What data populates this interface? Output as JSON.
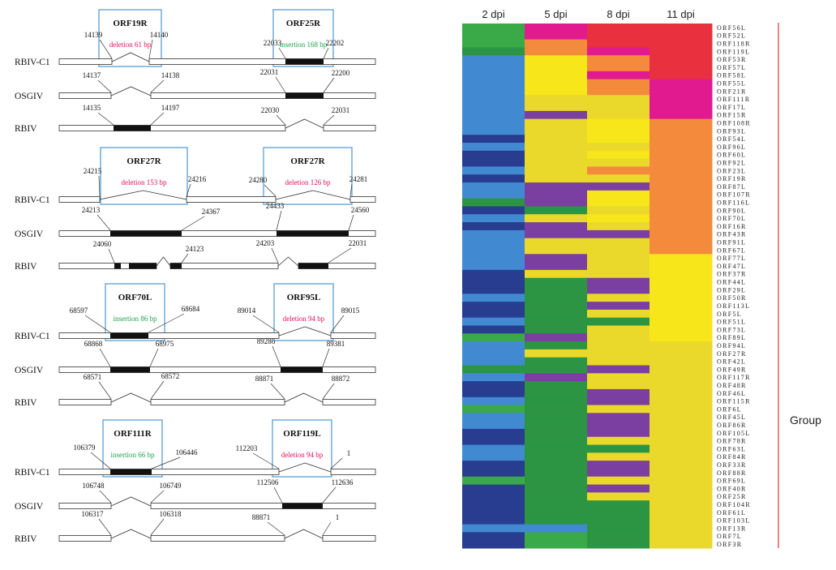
{
  "colors": {
    "red": "#e8303f",
    "pink": "#e21a8f",
    "orange": "#f48a3c",
    "yellow": "#f7e619",
    "gold": "#ead92a",
    "purple": "#7a3fa1",
    "green": "#2c9543",
    "lightgreen": "#3aaa48",
    "blue": "#418ad1",
    "navy": "#283c90",
    "insertion": "#1da34a",
    "deletion": "#e0105a",
    "box": "#5a9fd2",
    "redline": "#e63333"
  },
  "diagram": {
    "panels": [
      {
        "boxes": [
          {
            "title": "ORF19R",
            "label": "deletion 61 bp",
            "kind": "deletion"
          },
          {
            "title": "ORF25R",
            "label": "insertion 168 bp",
            "kind": "insertion"
          }
        ],
        "rows": [
          {
            "name": "RBIV-C1",
            "left": [
              "14139",
              "14140"
            ],
            "right": [
              "22033",
              "22202"
            ]
          },
          {
            "name": "OSGIV",
            "left": [
              "14137",
              "14138"
            ],
            "right": [
              "22031",
              "22200"
            ]
          },
          {
            "name": "RBIV",
            "left": [
              "14135",
              "14197"
            ],
            "right": [
              "22030",
              "22031"
            ]
          }
        ]
      },
      {
        "boxes": [
          {
            "title": "ORF27R",
            "label": "deletion 153 bp",
            "kind": "deletion"
          },
          {
            "title": "ORF27R",
            "label": "deletion 126 bp",
            "kind": "deletion"
          }
        ],
        "rows": [
          {
            "name": "RBIV-C1",
            "left": [
              "24215",
              "24216"
            ],
            "right": [
              "24280",
              "24281"
            ]
          },
          {
            "name": "OSGIV",
            "left": [
              "24213",
              "24367"
            ],
            "right": [
              "24433",
              "24560"
            ]
          },
          {
            "name": "RBIV",
            "left": [
              "24060",
              "24123"
            ],
            "right": [
              "24203",
              "22031"
            ]
          }
        ]
      },
      {
        "boxes": [
          {
            "title": "ORF70L",
            "label": "insertion 86 bp",
            "kind": "insertion"
          },
          {
            "title": "ORF95L",
            "label": "deletion 94 bp",
            "kind": "deletion"
          }
        ],
        "rows": [
          {
            "name": "RBIV-C1",
            "left": [
              "68597",
              "68684"
            ],
            "right": [
              "89014",
              "89015"
            ]
          },
          {
            "name": "OSGIV",
            "left": [
              "68868",
              "68975"
            ],
            "right": [
              "89286",
              "89381"
            ]
          },
          {
            "name": "RBIV",
            "left": [
              "68571",
              "68572"
            ],
            "right": [
              "88871",
              "88872"
            ]
          }
        ]
      },
      {
        "boxes": [
          {
            "title": "ORF111R",
            "label": "insertion 66 bp",
            "kind": "insertion"
          },
          {
            "title": "ORF119L",
            "label": "deletion 94 bp",
            "kind": "deletion"
          }
        ],
        "rows": [
          {
            "name": "RBIV-C1",
            "left": [
              "106379",
              "106446"
            ],
            "right": [
              "112203",
              "1"
            ]
          },
          {
            "name": "OSGIV",
            "left": [
              "106748",
              "106749"
            ],
            "right": [
              "112506",
              "112636"
            ]
          },
          {
            "name": "RBIV",
            "left": [
              "106317",
              "106318"
            ],
            "right": [
              "88871",
              "1"
            ]
          }
        ]
      }
    ]
  },
  "heatmap": {
    "columns": [
      "2 dpi",
      "5 dpi",
      "8 dpi",
      "11 dpi"
    ],
    "group_label": "Group",
    "genes": [
      "ORF56L",
      "ORF52L",
      "ORF118R",
      "ORF119L",
      "ORF53R",
      "ORF57L",
      "ORF58L",
      "ORF55L",
      "ORF21R",
      "ORF111R",
      "ORF17L",
      "ORF15R",
      "ORF108R",
      "ORF93L",
      "ORF54L",
      "ORF96L",
      "ORF60L",
      "ORF92L",
      "ORF23L",
      "ORF19R",
      "ORF87L",
      "ORF107R",
      "ORF116L",
      "ORF90L",
      "ORF70L",
      "ORF16R",
      "ORF43R",
      "ORF91L",
      "ORF67L",
      "ORF77L",
      "ORF47L",
      "ORF37R",
      "ORF44L",
      "ORF29L",
      "ORF50R",
      "ORF113L",
      "ORF5L",
      "ORF51L",
      "ORF73L",
      "ORF89L",
      "ORF94L",
      "ORF27R",
      "ORF42L",
      "ORF49R",
      "ORF117R",
      "ORF48R",
      "ORF46L",
      "ORF115R",
      "ORF6L",
      "ORF45L",
      "ORF86R",
      "ORF105L",
      "ORF78R",
      "ORF63L",
      "ORF84R",
      "ORF33R",
      "ORF88R",
      "ORF69L",
      "ORF40R",
      "ORF25R",
      "ORF104R",
      "ORF61L",
      "ORF103L",
      "ORF13R",
      "ORF7L",
      "ORF3R"
    ],
    "cells": [
      [
        "lightgreen",
        "pink",
        "red",
        "red"
      ],
      [
        "lightgreen",
        "pink",
        "red",
        "red"
      ],
      [
        "lightgreen",
        "orange",
        "red",
        "red"
      ],
      [
        "green",
        "orange",
        "pink",
        "red"
      ],
      [
        "blue",
        "yellow",
        "orange",
        "red"
      ],
      [
        "blue",
        "yellow",
        "orange",
        "red"
      ],
      [
        "blue",
        "yellow",
        "pink",
        "red"
      ],
      [
        "blue",
        "yellow",
        "orange",
        "pink"
      ],
      [
        "blue",
        "yellow",
        "orange",
        "pink"
      ],
      [
        "blue",
        "gold",
        "gold",
        "pink"
      ],
      [
        "blue",
        "gold",
        "gold",
        "pink"
      ],
      [
        "blue",
        "purple",
        "gold",
        "pink"
      ],
      [
        "blue",
        "gold",
        "yellow",
        "orange"
      ],
      [
        "blue",
        "gold",
        "yellow",
        "orange"
      ],
      [
        "navy",
        "gold",
        "yellow",
        "orange"
      ],
      [
        "blue",
        "gold",
        "gold",
        "orange"
      ],
      [
        "navy",
        "gold",
        "yellow",
        "orange"
      ],
      [
        "navy",
        "gold",
        "gold",
        "orange"
      ],
      [
        "blue",
        "gold",
        "orange",
        "orange"
      ],
      [
        "navy",
        "gold",
        "gold",
        "orange"
      ],
      [
        "blue",
        "purple",
        "purple",
        "orange"
      ],
      [
        "blue",
        "purple",
        "yellow",
        "orange"
      ],
      [
        "green",
        "purple",
        "yellow",
        "orange"
      ],
      [
        "navy",
        "green",
        "gold",
        "orange"
      ],
      [
        "blue",
        "gold",
        "yellow",
        "orange"
      ],
      [
        "navy",
        "purple",
        "gold",
        "orange"
      ],
      [
        "blue",
        "purple",
        "purple",
        "orange"
      ],
      [
        "blue",
        "gold",
        "gold",
        "orange"
      ],
      [
        "blue",
        "gold",
        "gold",
        "orange"
      ],
      [
        "blue",
        "purple",
        "gold",
        "yellow"
      ],
      [
        "blue",
        "purple",
        "gold",
        "yellow"
      ],
      [
        "navy",
        "gold",
        "gold",
        "yellow"
      ],
      [
        "navy",
        "green",
        "purple",
        "yellow"
      ],
      [
        "navy",
        "green",
        "purple",
        "yellow"
      ],
      [
        "blue",
        "green",
        "gold",
        "yellow"
      ],
      [
        "navy",
        "green",
        "purple",
        "yellow"
      ],
      [
        "navy",
        "green",
        "gold",
        "yellow"
      ],
      [
        "blue",
        "green",
        "green",
        "yellow"
      ],
      [
        "navy",
        "green",
        "gold",
        "yellow"
      ],
      [
        "lightgreen",
        "purple",
        "gold",
        "yellow"
      ],
      [
        "blue",
        "green",
        "gold",
        "gold"
      ],
      [
        "blue",
        "gold",
        "gold",
        "gold"
      ],
      [
        "blue",
        "green",
        "gold",
        "gold"
      ],
      [
        "green",
        "green",
        "purple",
        "gold"
      ],
      [
        "blue",
        "purple",
        "gold",
        "gold"
      ],
      [
        "navy",
        "green",
        "gold",
        "gold"
      ],
      [
        "navy",
        "green",
        "purple",
        "gold"
      ],
      [
        "blue",
        "green",
        "purple",
        "gold"
      ],
      [
        "lightgreen",
        "green",
        "gold",
        "gold"
      ],
      [
        "blue",
        "green",
        "purple",
        "gold"
      ],
      [
        "blue",
        "green",
        "purple",
        "gold"
      ],
      [
        "navy",
        "green",
        "purple",
        "gold"
      ],
      [
        "navy",
        "green",
        "gold",
        "gold"
      ],
      [
        "blue",
        "green",
        "green",
        "gold"
      ],
      [
        "blue",
        "green",
        "gold",
        "gold"
      ],
      [
        "navy",
        "green",
        "purple",
        "gold"
      ],
      [
        "navy",
        "green",
        "purple",
        "gold"
      ],
      [
        "lightgreen",
        "green",
        "gold",
        "gold"
      ],
      [
        "navy",
        "green",
        "purple",
        "gold"
      ],
      [
        "navy",
        "green",
        "gold",
        "gold"
      ],
      [
        "navy",
        "green",
        "green",
        "gold"
      ],
      [
        "navy",
        "green",
        "green",
        "gold"
      ],
      [
        "navy",
        "green",
        "green",
        "gold"
      ],
      [
        "blue",
        "blue",
        "green",
        "gold"
      ],
      [
        "navy",
        "lightgreen",
        "green",
        "gold"
      ],
      [
        "navy",
        "lightgreen",
        "green",
        "gold"
      ]
    ]
  }
}
